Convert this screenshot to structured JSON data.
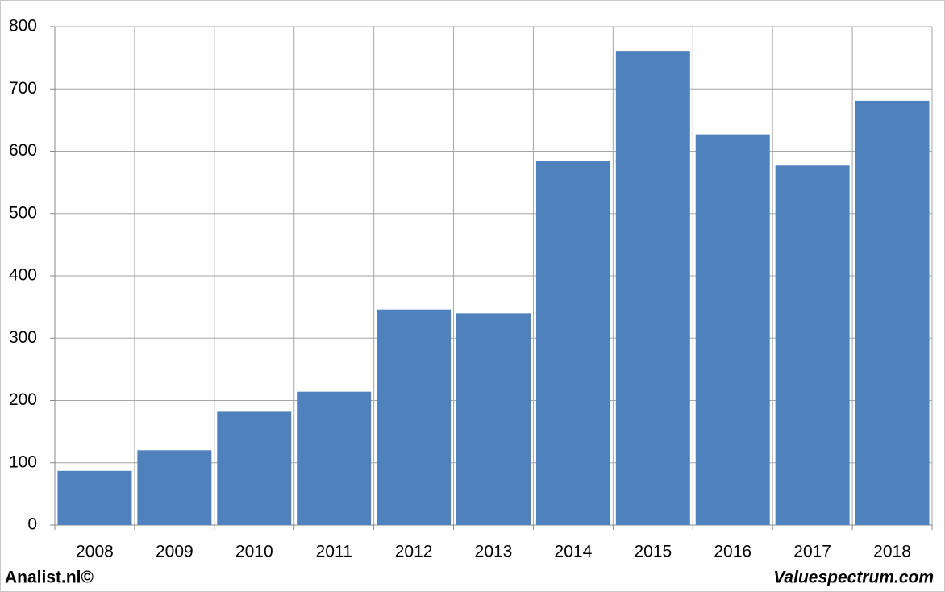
{
  "chart_data": {
    "type": "bar",
    "categories": [
      "2008",
      "2009",
      "2010",
      "2011",
      "2012",
      "2013",
      "2014",
      "2015",
      "2016",
      "2017",
      "2018"
    ],
    "values": [
      87,
      120,
      182,
      214,
      346,
      340,
      585,
      761,
      627,
      577,
      681
    ],
    "color": "#4f81bd",
    "ylim": [
      0,
      800
    ],
    "yticks": [
      0,
      100,
      200,
      300,
      400,
      500,
      600,
      700,
      800
    ],
    "grid": true,
    "footer_left": "Analist.nl©",
    "footer_right": "Valuespectrum.com"
  }
}
